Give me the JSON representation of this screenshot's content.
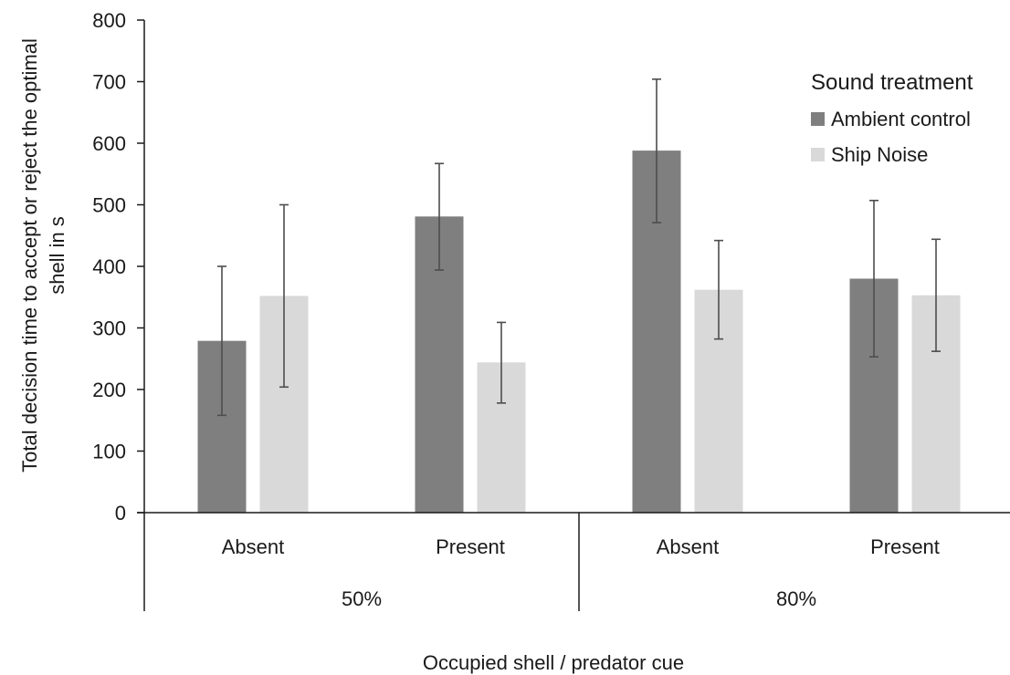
{
  "chart_data": {
    "type": "bar",
    "ylabel_line1": "Total decision time to accept or reject the optimal",
    "ylabel_line2": "shell in s",
    "xlabel": "Occupied shell / predator cue",
    "ylim": [
      0,
      800
    ],
    "yticks": [
      0,
      100,
      200,
      300,
      400,
      500,
      600,
      700,
      800
    ],
    "groups": [
      {
        "label": "50%",
        "categories": [
          "Absent",
          "Present"
        ]
      },
      {
        "label": "80%",
        "categories": [
          "Absent",
          "Present"
        ]
      }
    ],
    "categories": [
      "Absent",
      "Present",
      "Absent",
      "Present"
    ],
    "legend_title": "Sound treatment",
    "legend_position": "top-right",
    "grid": false,
    "series": [
      {
        "name": "Ambient control",
        "color": "#7f7f7f",
        "values": [
          279,
          481,
          588,
          380
        ],
        "err_low": [
          158,
          394,
          471,
          253
        ],
        "err_high": [
          400,
          567,
          704,
          507
        ]
      },
      {
        "name": "Ship Noise",
        "color": "#d9d9d9",
        "values": [
          352,
          244,
          362,
          353
        ],
        "err_low": [
          204,
          178,
          282,
          262
        ],
        "err_high": [
          500,
          309,
          442,
          444
        ]
      }
    ]
  }
}
